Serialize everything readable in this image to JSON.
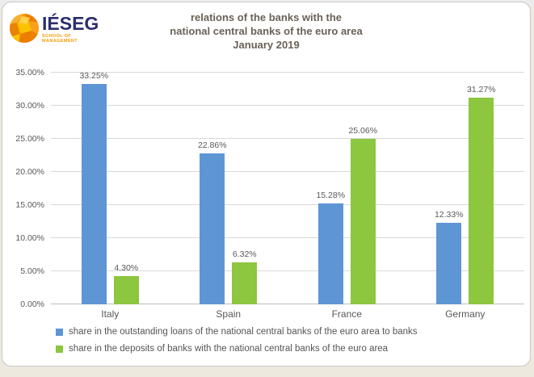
{
  "page": {
    "background_color": "#EDE9DE",
    "card_border_color": "#C9C9C9"
  },
  "logo": {
    "name": "IÉSEG",
    "subtitle": "SCHOOL OF MANAGEMENT",
    "name_color": "#2B2E6E",
    "subtitle_color": "#F59C00",
    "globe_color": "#F59C00"
  },
  "title": {
    "line1": "relations of the banks with the",
    "line2": "national central banks of the euro area",
    "line3": "January 2019",
    "color": "#6B6156"
  },
  "chart_data": {
    "type": "bar",
    "title": "relations of the banks with the national central banks of the euro area January 2019",
    "categories": [
      "Italy",
      "Spain",
      "France",
      "Germany"
    ],
    "series": [
      {
        "name": "share in the outstanding loans of the national central banks of the euro area to banks",
        "color": "#5E96D5",
        "values": [
          33.25,
          22.86,
          15.28,
          12.33
        ],
        "data_labels": [
          "33.25%",
          "22.86%",
          "15.28%",
          "12.33%"
        ]
      },
      {
        "name": "share in the deposits of banks with the national central banks of the euro area",
        "color": "#8DC63F",
        "values": [
          4.3,
          6.32,
          25.06,
          31.27
        ],
        "data_labels": [
          "4.30%",
          "6.32%",
          "25.06%",
          "31.27%"
        ]
      }
    ],
    "xlabel": "",
    "ylabel": "",
    "ylim": [
      0,
      35
    ],
    "ytick_step": 5,
    "ytick_labels": [
      "0.00%",
      "5.00%",
      "10.00%",
      "15.00%",
      "20.00%",
      "25.00%",
      "30.00%",
      "35.00%"
    ],
    "grid": true,
    "gridline_color": "#D9D9D9",
    "axis_line_color": "#BFBFBF",
    "label_color": "#595959",
    "legend_position": "bottom-left"
  }
}
